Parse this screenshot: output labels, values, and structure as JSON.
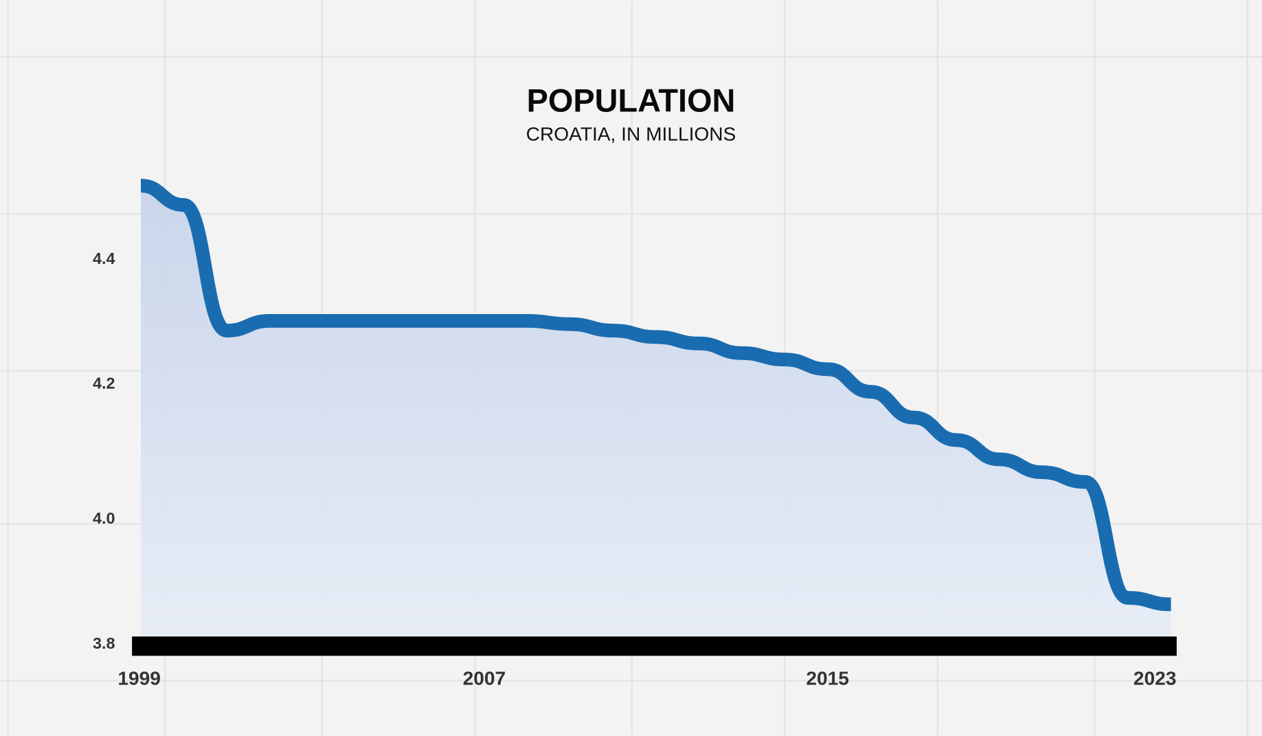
{
  "chart_data": {
    "type": "area",
    "title": "POPULATION",
    "subtitle": "CROATIA, IN MILLIONS",
    "xlabel": "",
    "ylabel": "",
    "x_ticks": [
      "1999",
      "2007",
      "2015",
      "2023"
    ],
    "y_ticks": [
      "3.8",
      "4.0",
      "4.2",
      "4.4"
    ],
    "ylim": [
      3.8,
      4.55
    ],
    "xlim": [
      1999,
      2023
    ],
    "grid": true,
    "colors": {
      "line": "#1a6cb0",
      "fill": "#c9d6ec",
      "axis": "#000000"
    },
    "x": [
      1999,
      2000,
      2001,
      2002,
      2003,
      2004,
      2005,
      2006,
      2007,
      2008,
      2009,
      2010,
      2011,
      2012,
      2013,
      2014,
      2015,
      2016,
      2017,
      2018,
      2019,
      2020,
      2021,
      2022,
      2023
    ],
    "series": [
      {
        "name": "Population (millions)",
        "values": [
          4.51,
          4.48,
          4.285,
          4.3,
          4.3,
          4.3,
          4.3,
          4.3,
          4.3,
          4.3,
          4.295,
          4.285,
          4.275,
          4.265,
          4.25,
          4.24,
          4.225,
          4.19,
          4.15,
          4.115,
          4.085,
          4.065,
          4.05,
          3.87,
          3.86
        ]
      }
    ]
  }
}
